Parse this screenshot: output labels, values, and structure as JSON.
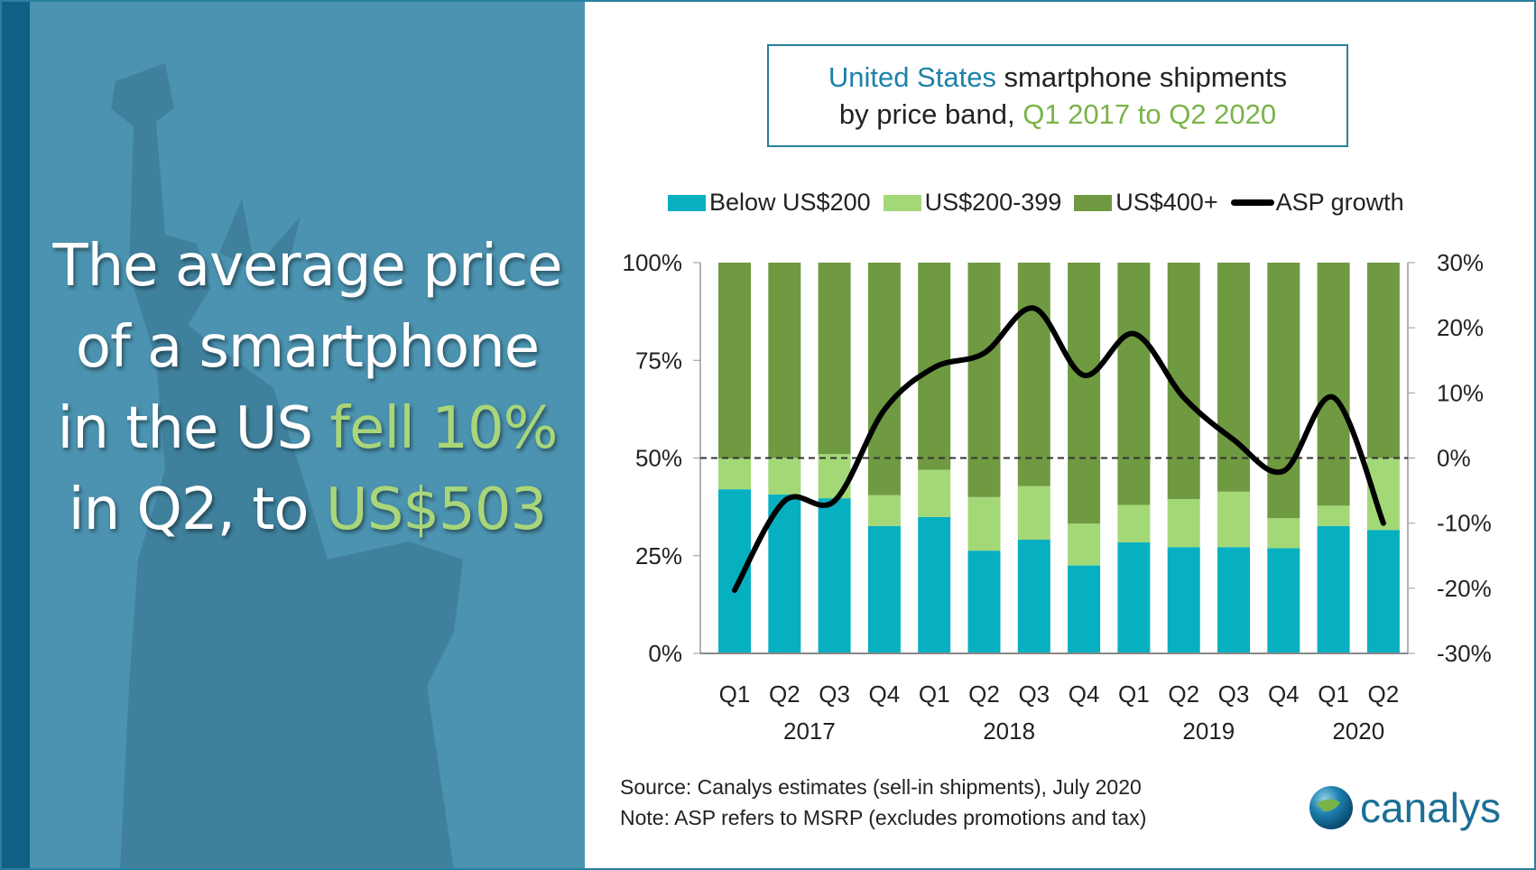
{
  "headline": {
    "line1": "The average price",
    "line2": "of a smartphone",
    "line3_a": "in the US ",
    "line3_b": "fell 10%",
    "line4_a": "in Q2, to ",
    "line4_b": "US$503"
  },
  "title": {
    "part1": "United States",
    "part2": " smartphone shipments",
    "part3": "by price band, ",
    "part4": "Q1 2017 to Q2 2020"
  },
  "source": "Source: Canalys estimates (sell-in shipments), July 2020",
  "note": "Note: ASP refers to MSRP (excludes promotions and tax)",
  "logo": "canalys",
  "colors": {
    "below200": "#06b0c1",
    "mid": "#a3d877",
    "high": "#6f9a41",
    "line": "#000000",
    "panel": "#4b93b0"
  },
  "chart_data": {
    "type": "bar",
    "stacked": true,
    "categories": [
      "Q1",
      "Q2",
      "Q3",
      "Q4",
      "Q1",
      "Q2",
      "Q3",
      "Q4",
      "Q1",
      "Q2",
      "Q3",
      "Q4",
      "Q1",
      "Q2"
    ],
    "years": [
      "2017",
      "2018",
      "2019",
      "2020"
    ],
    "series": [
      {
        "name": "Below US$200",
        "values": [
          42,
          40.7,
          39.7,
          32.6,
          34.9,
          26.3,
          29.1,
          22.5,
          28.4,
          27.2,
          27.2,
          26.9,
          32.6,
          31.6
        ]
      },
      {
        "name": "US$200-399",
        "values": [
          7.9,
          9.3,
          11.3,
          7.9,
          12.1,
          13.7,
          13.7,
          10.7,
          9.6,
          12.3,
          14.2,
          7.7,
          5.2,
          18.4
        ]
      },
      {
        "name": "US$400+",
        "values": [
          50.1,
          50,
          49,
          59.5,
          53,
          60,
          57.2,
          66.8,
          62,
          60.5,
          58.6,
          65.4,
          62.2,
          50
        ]
      },
      {
        "name": "ASP growth",
        "type": "line",
        "axis": "right",
        "values": [
          -20.3,
          -6.6,
          -6.6,
          7.4,
          13.9,
          16.1,
          23,
          12.7,
          19.1,
          9.3,
          2.8,
          -2,
          9.3,
          -10
        ]
      }
    ],
    "y_left": {
      "ticks": [
        "0%",
        "25%",
        "50%",
        "75%",
        "100%"
      ],
      "range": [
        0,
        100
      ]
    },
    "y_right": {
      "ticks": [
        "-30%",
        "-20%",
        "-10%",
        "0%",
        "10%",
        "20%",
        "30%"
      ],
      "range": [
        -30,
        30
      ]
    },
    "reference_line": "0% dashed",
    "legend": "top"
  }
}
